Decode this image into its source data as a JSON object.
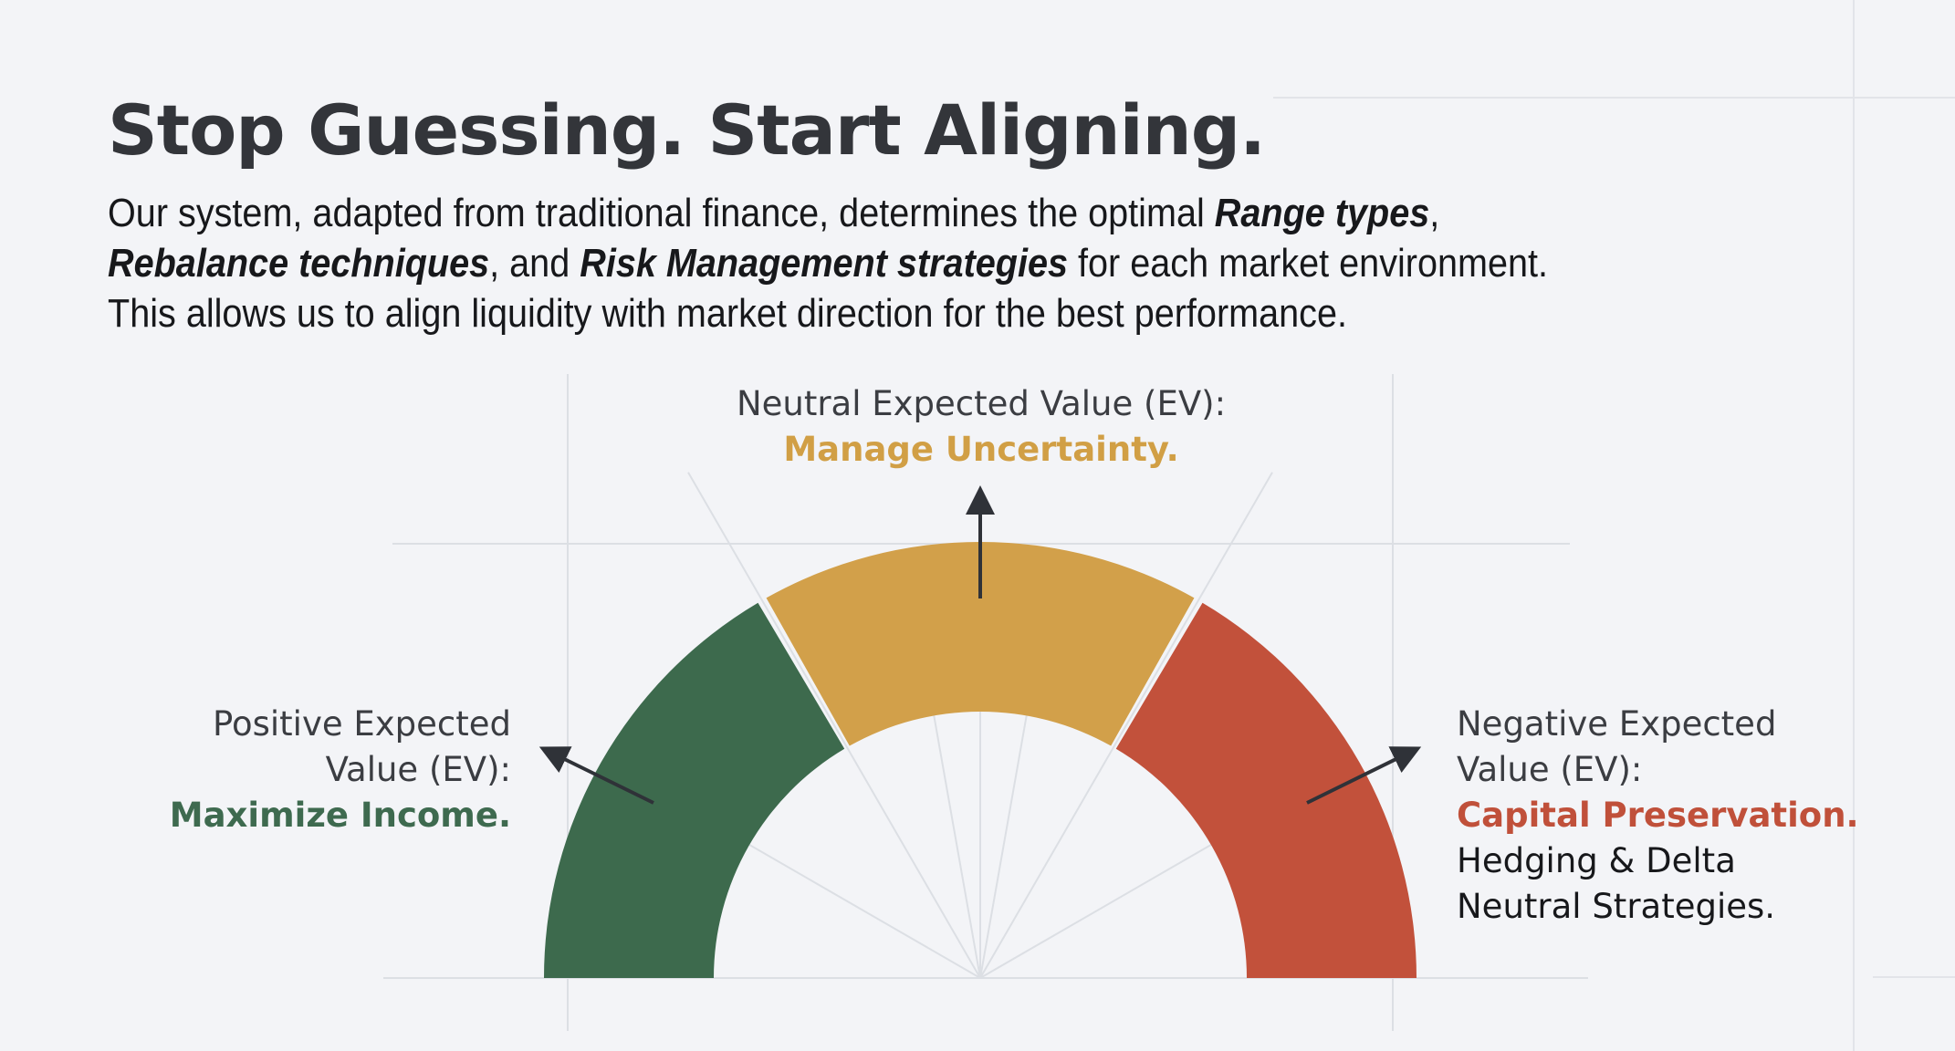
{
  "title": "Stop Guessing. Start Aligning.",
  "intro": {
    "part1": "Our system, adapted from traditional finance, determines the optimal ",
    "em1": "Range types",
    "sep1": ", ",
    "em2": "Rebalance techniques",
    "sep2": ", and ",
    "em3": "Risk Management strategies",
    "part2": " for each market environment. This allows us to align liquidity with market direction for the best performance."
  },
  "gauge": {
    "segments": [
      {
        "name": "positive",
        "color": "#3d6a4d"
      },
      {
        "name": "neutral",
        "color": "#d2a04a"
      },
      {
        "name": "negative",
        "color": "#c2513b"
      }
    ],
    "arrow_color": "#2f3238"
  },
  "labels": {
    "neutral": {
      "heading": "Neutral Expected Value (EV):",
      "highlight": "Manage Uncertainty.",
      "color": "#d19f45"
    },
    "positive": {
      "line1": "Positive Expected",
      "line2": "Value (EV):",
      "highlight": "Maximize Income.",
      "color": "#3e6a4f"
    },
    "negative": {
      "line1": "Negative Expected",
      "line2": "Value (EV):",
      "highlight": "Capital Preservation.",
      "detail1": "Hedging & Delta",
      "detail2": "Neutral Strategies.",
      "color": "#c0503a"
    }
  }
}
